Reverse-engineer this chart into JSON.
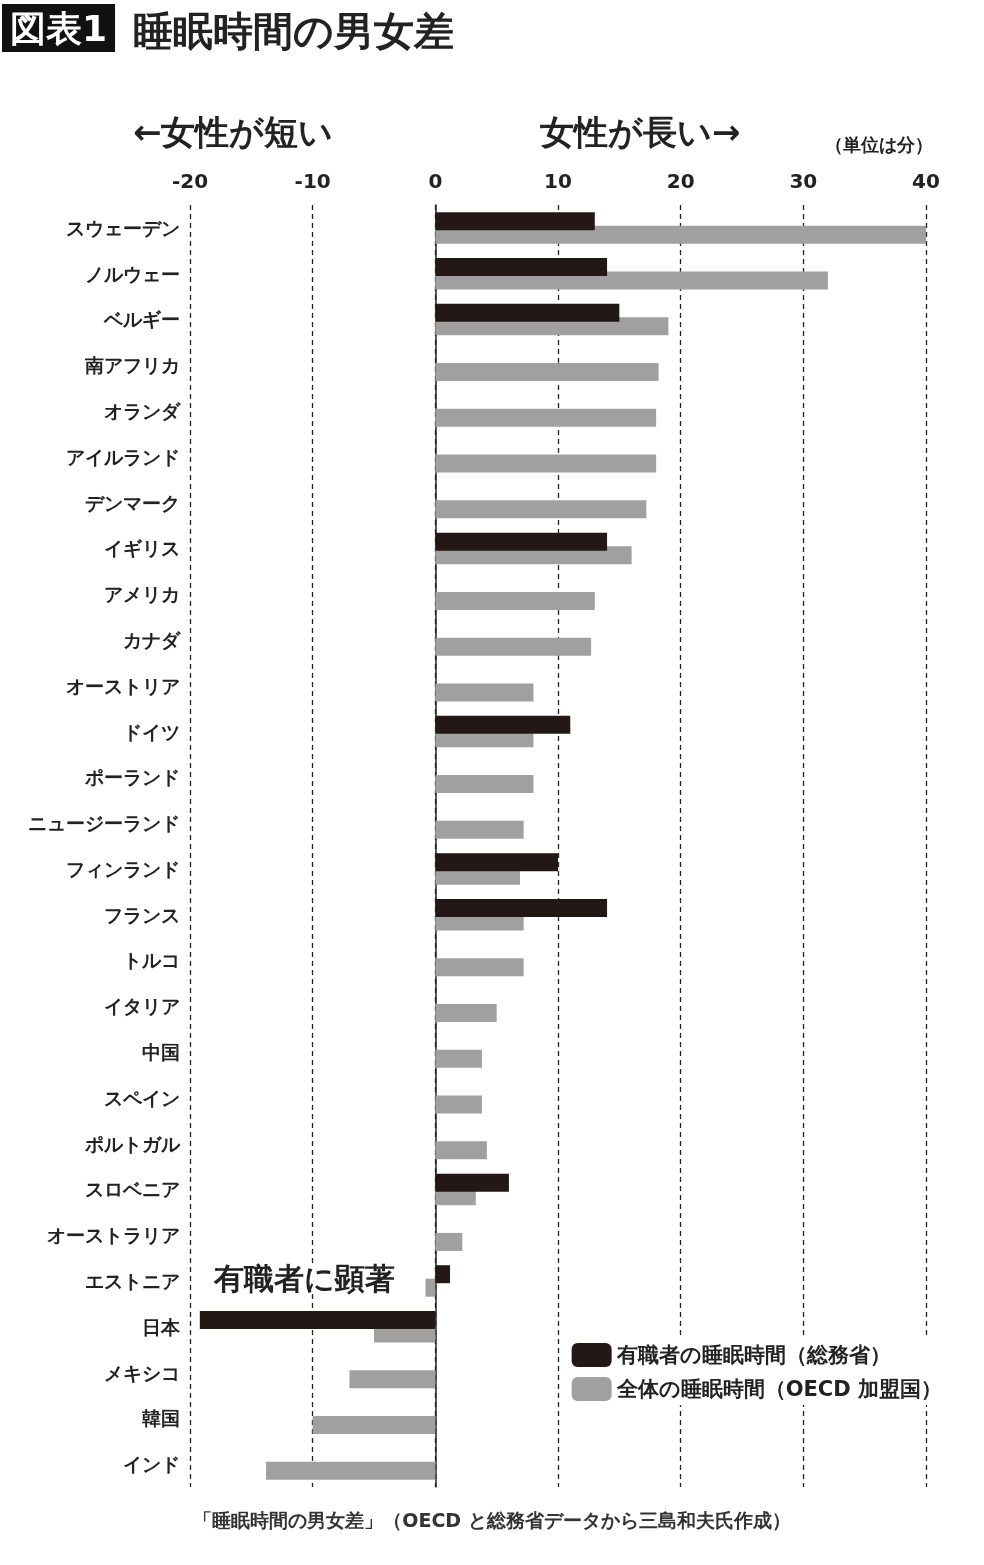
{
  "chart_data": {
    "type": "bar",
    "orientation": "horizontal",
    "title": "睡眠時間の男女差",
    "categories": [
      "スウェーデン",
      "ノルウェー",
      "ベルギー",
      "南アフリカ",
      "オランダ",
      "アイルランド",
      "デンマーク",
      "イギリス",
      "アメリカ",
      "カナダ",
      "オーストリア",
      "ドイツ",
      "ポーランド",
      "ニュージーランド",
      "フィンランド",
      "フランス",
      "トルコ",
      "イタリア",
      "中国",
      "スペイン",
      "ポルトガル",
      "スロベニア",
      "オーストラリア",
      "エストニア",
      "日本",
      "メキシコ",
      "韓国",
      "インド"
    ],
    "series": [
      {
        "name": "有職者の睡眠時間（総務省）",
        "color": "#231815",
        "values": [
          13,
          14,
          15,
          null,
          null,
          null,
          null,
          14,
          null,
          null,
          null,
          11,
          null,
          null,
          10,
          14,
          null,
          null,
          null,
          null,
          null,
          6,
          null,
          1.2,
          -19.2,
          null,
          null,
          null
        ]
      },
      {
        "name": "全体の睡眠時間（OECD 加盟国）",
        "color": "#a0a0a0",
        "values": [
          40,
          32,
          19,
          18.2,
          18,
          18,
          17.2,
          16,
          13,
          12.7,
          8,
          8,
          8,
          7.2,
          6.9,
          7.2,
          7.2,
          5,
          3.8,
          3.8,
          4.2,
          3.3,
          2.2,
          -0.8,
          -5,
          -7,
          -10,
          -13.8
        ]
      }
    ],
    "xlim": [
      -20,
      40
    ],
    "xticks": [
      -20,
      -10,
      0,
      10,
      20,
      30,
      40
    ],
    "grid": "x",
    "legend": "bottom right",
    "annotations": [
      "図表1",
      "←女性が短い",
      "女性が長い→",
      "（単位は分）",
      "有職者に顕著",
      "「睡眠時間の男女差」（OECD と総務省データから三島和夫氏作成）"
    ]
  }
}
